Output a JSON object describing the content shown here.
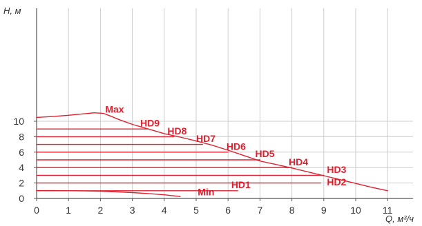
{
  "chart_data": {
    "type": "line",
    "xlabel": "Q, м³/ч",
    "ylabel": "H, м",
    "xlim": [
      0,
      12
    ],
    "ylim": [
      0,
      12
    ],
    "x_ticks": [
      "0",
      "1",
      "2",
      "3",
      "4",
      "5",
      "6",
      "7",
      "8",
      "9",
      "10",
      "11"
    ],
    "y_ticks": [
      "0",
      "2",
      "4",
      "6",
      "8",
      "10"
    ],
    "grid": true,
    "colors": {
      "curve": "#e0202e",
      "grid": "#cccccc",
      "axis": "#555555",
      "text": "#333333"
    },
    "series": [
      {
        "name": "Max",
        "points": [
          [
            0,
            10.5
          ],
          [
            0.5,
            10.62
          ],
          [
            1,
            10.78
          ],
          [
            1.5,
            10.97
          ],
          [
            1.8,
            11.1
          ],
          [
            2.1,
            11.02
          ],
          [
            2.3,
            10.7
          ],
          [
            2.6,
            10.2
          ],
          [
            3,
            9.6
          ],
          [
            3.5,
            9.0
          ],
          [
            4,
            8.4
          ],
          [
            4.5,
            7.95
          ],
          [
            5,
            7.45
          ],
          [
            5.5,
            6.9
          ],
          [
            6,
            6.25
          ],
          [
            6.5,
            5.55
          ],
          [
            7,
            4.85
          ],
          [
            7.5,
            4.4
          ],
          [
            8,
            3.95
          ],
          [
            8.5,
            3.45
          ],
          [
            9,
            2.95
          ],
          [
            9.5,
            2.45
          ],
          [
            10,
            1.95
          ],
          [
            10.5,
            1.45
          ],
          [
            11,
            1.0
          ]
        ]
      },
      {
        "name": "HD9",
        "points": [
          [
            0,
            9.0
          ],
          [
            3.5,
            9.0
          ]
        ]
      },
      {
        "name": "HD8",
        "points": [
          [
            0,
            8.0
          ],
          [
            4.3,
            8.0
          ]
        ]
      },
      {
        "name": "HD7",
        "points": [
          [
            0,
            7.0
          ],
          [
            5.2,
            7.0
          ]
        ]
      },
      {
        "name": "HD6",
        "points": [
          [
            0,
            6.0
          ],
          [
            6.0,
            6.0
          ]
        ]
      },
      {
        "name": "HD5",
        "points": [
          [
            0,
            5.0
          ],
          [
            7.0,
            5.0
          ]
        ]
      },
      {
        "name": "HD4",
        "points": [
          [
            0,
            4.0
          ],
          [
            8.0,
            4.0
          ]
        ]
      },
      {
        "name": "HD3",
        "points": [
          [
            0,
            3.0
          ],
          [
            9.0,
            3.0
          ]
        ]
      },
      {
        "name": "HD2",
        "points": [
          [
            0,
            2.0
          ],
          [
            8.9,
            2.0
          ]
        ]
      },
      {
        "name": "HD1",
        "points": [
          [
            0,
            1.0
          ],
          [
            6.3,
            1.0
          ]
        ]
      },
      {
        "name": "Min",
        "points": [
          [
            0,
            1.02
          ],
          [
            0.5,
            1.02
          ],
          [
            1,
            1.0
          ],
          [
            1.5,
            0.97
          ],
          [
            2,
            0.93
          ],
          [
            2.5,
            0.86
          ],
          [
            3,
            0.76
          ],
          [
            3.5,
            0.63
          ],
          [
            4,
            0.47
          ],
          [
            4.5,
            0.25
          ]
        ]
      }
    ],
    "labels": [
      {
        "text": "Max",
        "x": 2.15,
        "y": 11.1
      },
      {
        "text": "HD9",
        "x": 3.25,
        "y": 9.35
      },
      {
        "text": "HD8",
        "x": 4.1,
        "y": 8.3
      },
      {
        "text": "HD7",
        "x": 5.0,
        "y": 7.3
      },
      {
        "text": "HD6",
        "x": 5.95,
        "y": 6.3
      },
      {
        "text": "HD5",
        "x": 6.85,
        "y": 5.35
      },
      {
        "text": "HD4",
        "x": 7.9,
        "y": 4.3
      },
      {
        "text": "HD3",
        "x": 9.1,
        "y": 3.3
      },
      {
        "text": "HD2",
        "x": 9.1,
        "y": 1.7
      },
      {
        "text": "HD1",
        "x": 6.1,
        "y": 1.35
      },
      {
        "text": "Min",
        "x": 5.05,
        "y": 0.4
      }
    ]
  }
}
